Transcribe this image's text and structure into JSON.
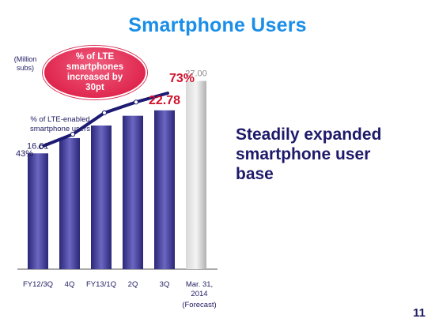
{
  "slide": {
    "title": "Smartphone Users",
    "title_color": "#1a8ee8",
    "unit_lines": [
      "(Million",
      "subs)"
    ],
    "bubble_lines": [
      "% of LTE",
      "smartphones",
      "increased by",
      "30pt"
    ],
    "lte_label_lines": [
      "% of LTE-enabled",
      "smartphone users"
    ],
    "message_lines": [
      "Steadily expanded",
      "smartphone user",
      "base"
    ],
    "page_number": "11"
  },
  "chart_data": {
    "type": "bar",
    "categories": [
      "FY12/3Q",
      "4Q",
      "FY13/1Q",
      "2Q",
      "3Q",
      "Mar. 31, 2014"
    ],
    "category_note": "(Forecast)",
    "values": [
      16.61,
      18.8,
      20.6,
      22.0,
      22.78,
      27.0
    ],
    "bar_labels": [
      "16.61",
      null,
      null,
      null,
      "22.78",
      "27.00"
    ],
    "forecast_index": 5,
    "ylim": [
      0,
      30
    ],
    "colors": {
      "bar": "#2a2677",
      "bar_light": "#6b67c2",
      "forecast": "#b8b8b8",
      "highlight_text": "#d0112b",
      "text": "#1e1a60"
    },
    "lte_series": {
      "values": [
        43,
        50,
        62,
        68,
        73
      ],
      "labels": [
        "43%",
        null,
        null,
        null,
        "73%"
      ],
      "ylim": [
        0,
        100
      ]
    }
  }
}
